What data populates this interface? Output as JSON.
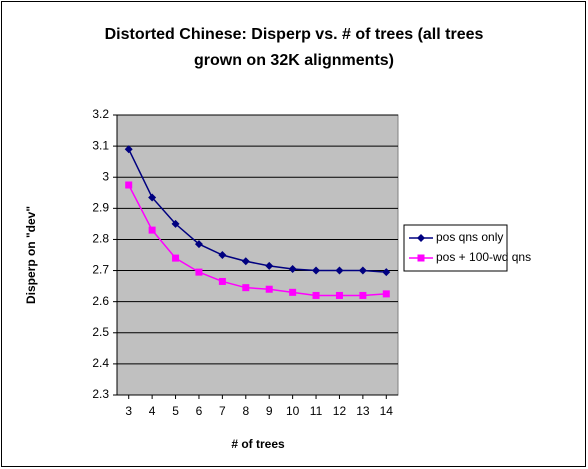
{
  "chart_data": {
    "type": "line",
    "title": "Distorted Chinese: Disperp vs. # of trees (all trees grown on 32K alignments)",
    "x_label": "# of trees",
    "y_label": "Disperp on \"dev\"",
    "x": [
      3,
      4,
      5,
      6,
      7,
      8,
      9,
      10,
      11,
      12,
      13,
      14
    ],
    "xlim": [
      2.5,
      14.5
    ],
    "ylim": [
      2.3,
      3.2
    ],
    "yticks": [
      2.3,
      2.4,
      2.5,
      2.6,
      2.7,
      2.8,
      2.9,
      3,
      3.1,
      3.2
    ],
    "grid": true,
    "legend": "right",
    "series": [
      {
        "name": "pos qns only",
        "color": "#000080",
        "marker": "diamond",
        "values": [
          3.09,
          2.935,
          2.85,
          2.785,
          2.75,
          2.73,
          2.715,
          2.705,
          2.7,
          2.7,
          2.7,
          2.695
        ]
      },
      {
        "name": "pos + 100-wd qns",
        "color": "#ff00ff",
        "marker": "square",
        "values": [
          2.975,
          2.83,
          2.74,
          2.695,
          2.665,
          2.645,
          2.64,
          2.63,
          2.62,
          2.62,
          2.62,
          2.625
        ]
      }
    ]
  }
}
